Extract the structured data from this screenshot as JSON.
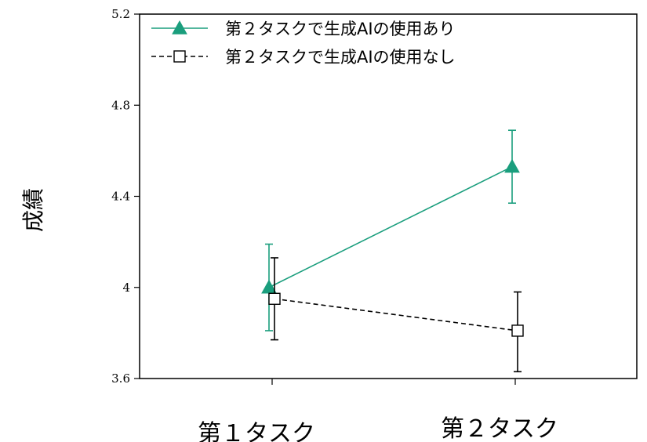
{
  "chart_data": {
    "type": "line",
    "title": "",
    "xlabel": "",
    "ylabel": "成績",
    "categories": [
      "第１タスク",
      "第２タスク"
    ],
    "ylim": [
      3.6,
      5.2
    ],
    "yticks": [
      3.6,
      4,
      4.4,
      4.8,
      5.2
    ],
    "ytick_labels": [
      "3.6",
      "4",
      "4.4",
      "4.8",
      "5.2"
    ],
    "grid": false,
    "legend": "top-left",
    "series": [
      {
        "name": "第２タスクで生成AIの使用あり",
        "values": [
          4.0,
          4.53
        ],
        "error_low": [
          3.81,
          4.37
        ],
        "error_high": [
          4.19,
          4.69
        ],
        "color": "#1a9e7d",
        "line_style": "solid",
        "marker": "filled-triangle"
      },
      {
        "name": "第２タスクで生成AIの使用なし",
        "values": [
          3.95,
          3.81
        ],
        "error_low": [
          3.77,
          3.63
        ],
        "error_high": [
          4.13,
          3.98
        ],
        "color": "#000000",
        "line_style": "dashed",
        "marker": "open-square"
      }
    ]
  }
}
